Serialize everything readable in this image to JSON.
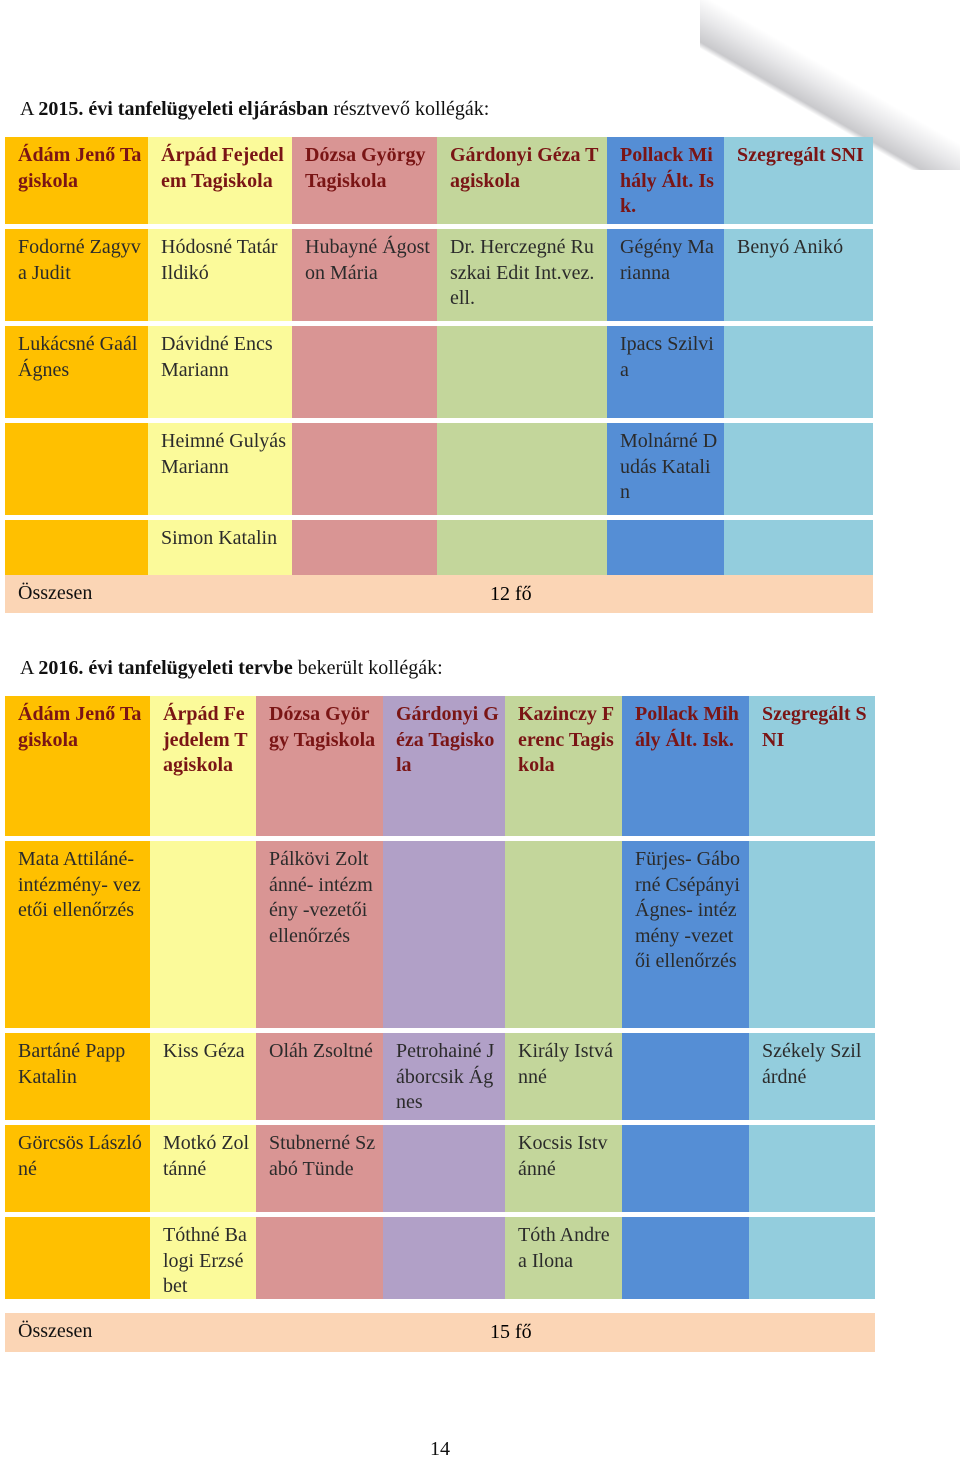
{
  "section1": {
    "heading_pre": "A ",
    "heading_bold": "2015. évi tanfelügyeleti eljárásban",
    "heading_post": " résztvevő kollégák:",
    "headers": [
      "Ádám Jenő Tagiskola",
      "Árpád Fejedelem Tagiskola",
      "Dózsa György Tagiskola",
      "Gárdonyi Géza Tagiskola",
      "Pollack Mihály Ált. Isk.",
      "Szegregált SNI"
    ],
    "rows": [
      [
        "Fodorné Zagyva Judit",
        "Hódosné Tatár Ildikó",
        "Hubayné Ágoston Mária",
        "Dr. Herczegné Ruszkai Edit Int.vez.ell.",
        "Gégény Marianna",
        "Benyó Anikó"
      ],
      [
        "Lukácsné Gaál Ágnes",
        "Dávidné Encs Mariann",
        "",
        "",
        "Ipacs Szilvia",
        ""
      ],
      [
        "",
        "Heimné Gulyás Mariann",
        "",
        "",
        "Molnárné Dudás Katalin",
        ""
      ],
      [
        "",
        "Simon Katalin",
        "",
        "",
        "",
        ""
      ]
    ],
    "total_label": "Összesen",
    "total_value": "12 fő"
  },
  "section2": {
    "heading_pre": "A ",
    "heading_bold": "2016. évi tanfelügyeleti tervbe",
    "heading_post": " bekerült kollégák:",
    "headers": [
      "Ádám Jenő Tagiskola",
      "Árpád Fejedelem Tagiskola",
      "Dózsa György Tagiskola",
      "Gárdonyi Géza Tagiskola",
      "Kazinczy Ferenc Tagiskola",
      "Pollack Mihály Ált. Isk.",
      "Szegregált SNI"
    ],
    "rows": [
      [
        "Mata Attiláné- intézmény- vezetői ellenőrzés",
        "",
        "Pálkövi Zoltánné- intézmény -vezetői ellenőrzés",
        "",
        "",
        "Fürjes- Gáborné Csépányi Ágnes- intézmény -vezetői ellenőrzés",
        ""
      ],
      [
        "Bartáné Papp Katalin",
        "Kiss Géza",
        "Oláh Zsoltné",
        "Petrohainé Jáborcsik Ágnes",
        "Király Istvánné",
        "",
        "Székely Szilárdné"
      ],
      [
        "Görcsös Lászlóné",
        "Motkó Zoltánné",
        "Stubnerné Szabó Tünde",
        "",
        "Kocsis Istvánné",
        "",
        ""
      ],
      [
        "",
        "Tóthné Balogi Erzsébet",
        "",
        "",
        "Tóth Andrea Ilona",
        "",
        ""
      ]
    ],
    "total_label": "Összesen",
    "total_value": "15 fő"
  },
  "page_number": "14",
  "colors": {
    "section1": [
      "#ffc000",
      "#fbfa9a",
      "#d99594",
      "#c3d69b",
      "#558ed5",
      "#93cddd"
    ],
    "section2": [
      "#ffc000",
      "#fbfa9a",
      "#d99594",
      "#b1a0c7",
      "#c3d69b",
      "#558ed5",
      "#93cddd"
    ],
    "header_text": "#7a1515",
    "total_row": "#fbd5b5"
  }
}
